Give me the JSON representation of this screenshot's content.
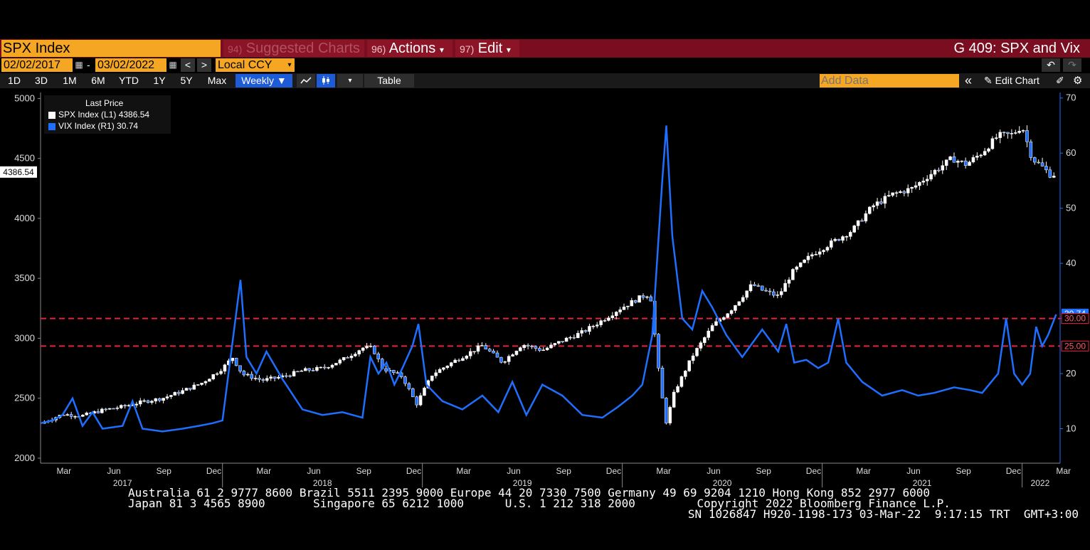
{
  "header": {
    "ticker": "SPX Index",
    "menus": [
      {
        "num": "94)",
        "label": "Suggested Charts",
        "dim": true
      },
      {
        "num": "96)",
        "label": "Actions",
        "caret": "▾"
      },
      {
        "num": "97)",
        "label": "Edit",
        "caret": "▾"
      }
    ],
    "chart_title": "G 409: SPX and Vix"
  },
  "range_bar": {
    "start_date": "02/02/2017",
    "end_date": "03/02/2022",
    "separator": "-",
    "currency": "Local CCY",
    "prev": "<",
    "next": ">"
  },
  "toolbar": {
    "periods": [
      "1D",
      "3D",
      "1M",
      "6M",
      "YTD",
      "1Y",
      "5Y",
      "Max"
    ],
    "frequency": "Weekly ▼",
    "table_label": "Table",
    "add_data_placeholder": "Add Data",
    "edit_chart_label": "Edit Chart",
    "collapse": "«"
  },
  "colors": {
    "spx": "#ffffff",
    "vix": "#1f6fff",
    "ref_line": "#e8223a",
    "accent": "#f5a623"
  },
  "chart_data": {
    "type": "line",
    "legend": {
      "title": "Last Price",
      "entries": [
        {
          "label": "SPX Index  (L1) 4386.54",
          "color": "#ffffff"
        },
        {
          "label": "VIX Index  (R1) 30.74",
          "color": "#1f6fff"
        }
      ],
      "placement": "top-left"
    },
    "left_axis": {
      "ticks": [
        2000,
        2500,
        3000,
        3500,
        4000,
        4500,
        5000
      ],
      "range": [
        1970,
        5050
      ],
      "last_label": "4386.54",
      "last_value": 4386.54
    },
    "right_axis": {
      "ticks": [
        10,
        20,
        30,
        40,
        50,
        60,
        70
      ],
      "range": [
        4,
        71
      ],
      "last_label": "30.74",
      "last_value": 30.74
    },
    "ref_lines": [
      {
        "value": 30,
        "label": "30.00"
      },
      {
        "value": 25,
        "label": "25.00"
      }
    ],
    "x_months": [
      "Mar",
      "Jun",
      "Sep",
      "Dec",
      "Mar",
      "Jun",
      "Sep",
      "Dec",
      "Mar",
      "Jun",
      "Sep",
      "Dec",
      "Mar",
      "Jun",
      "Sep",
      "Dec",
      "Mar",
      "Jun",
      "Sep",
      "Dec",
      "Mar"
    ],
    "x_years": [
      "2017",
      "2018",
      "2019",
      "2020",
      "2021",
      "2022"
    ],
    "series": [
      {
        "name": "SPX Index",
        "axis": "left",
        "style": "candle",
        "points": [
          [
            2017.09,
            2290
          ],
          [
            2017.2,
            2365
          ],
          [
            2017.3,
            2355
          ],
          [
            2017.4,
            2400
          ],
          [
            2017.5,
            2430
          ],
          [
            2017.6,
            2470
          ],
          [
            2017.7,
            2500
          ],
          [
            2017.8,
            2560
          ],
          [
            2017.9,
            2630
          ],
          [
            2018.0,
            2750
          ],
          [
            2018.05,
            2840
          ],
          [
            2018.1,
            2700
          ],
          [
            2018.2,
            2650
          ],
          [
            2018.3,
            2680
          ],
          [
            2018.4,
            2730
          ],
          [
            2018.5,
            2750
          ],
          [
            2018.6,
            2820
          ],
          [
            2018.7,
            2920
          ],
          [
            2018.75,
            2920
          ],
          [
            2018.8,
            2750
          ],
          [
            2018.9,
            2680
          ],
          [
            2018.97,
            2450
          ],
          [
            2019.05,
            2700
          ],
          [
            2019.15,
            2800
          ],
          [
            2019.3,
            2940
          ],
          [
            2019.4,
            2800
          ],
          [
            2019.5,
            2950
          ],
          [
            2019.6,
            2900
          ],
          [
            2019.7,
            2980
          ],
          [
            2019.8,
            3050
          ],
          [
            2019.9,
            3150
          ],
          [
            2019.98,
            3240
          ],
          [
            2020.1,
            3350
          ],
          [
            2020.14,
            3370
          ],
          [
            2020.19,
            2600
          ],
          [
            2020.22,
            2300
          ],
          [
            2020.26,
            2550
          ],
          [
            2020.35,
            2850
          ],
          [
            2020.45,
            3100
          ],
          [
            2020.55,
            3250
          ],
          [
            2020.65,
            3450
          ],
          [
            2020.7,
            3400
          ],
          [
            2020.78,
            3350
          ],
          [
            2020.85,
            3550
          ],
          [
            2020.95,
            3700
          ],
          [
            2021.05,
            3800
          ],
          [
            2021.15,
            3900
          ],
          [
            2021.25,
            4100
          ],
          [
            2021.35,
            4200
          ],
          [
            2021.45,
            4250
          ],
          [
            2021.55,
            4380
          ],
          [
            2021.65,
            4500
          ],
          [
            2021.72,
            4450
          ],
          [
            2021.8,
            4550
          ],
          [
            2021.88,
            4690
          ],
          [
            2021.95,
            4700
          ],
          [
            2022.0,
            4770
          ],
          [
            2022.05,
            4500
          ],
          [
            2022.1,
            4430
          ],
          [
            2022.15,
            4350
          ],
          [
            2022.17,
            4386.54
          ]
        ]
      },
      {
        "name": "VIX Index",
        "axis": "right",
        "style": "line",
        "points": [
          [
            2017.09,
            11.0
          ],
          [
            2017.15,
            11.5
          ],
          [
            2017.2,
            12.5
          ],
          [
            2017.25,
            15.5
          ],
          [
            2017.3,
            10.5
          ],
          [
            2017.35,
            13.0
          ],
          [
            2017.4,
            10.0
          ],
          [
            2017.5,
            10.5
          ],
          [
            2017.55,
            15.0
          ],
          [
            2017.6,
            10.0
          ],
          [
            2017.7,
            9.5
          ],
          [
            2017.8,
            10.0
          ],
          [
            2017.88,
            10.5
          ],
          [
            2017.95,
            11.0
          ],
          [
            2018.0,
            11.5
          ],
          [
            2018.09,
            37.0
          ],
          [
            2018.12,
            23.0
          ],
          [
            2018.17,
            20.0
          ],
          [
            2018.22,
            24.0
          ],
          [
            2018.3,
            19.0
          ],
          [
            2018.4,
            13.5
          ],
          [
            2018.5,
            12.5
          ],
          [
            2018.6,
            13.0
          ],
          [
            2018.7,
            12.0
          ],
          [
            2018.74,
            23.0
          ],
          [
            2018.78,
            20.0
          ],
          [
            2018.82,
            22.0
          ],
          [
            2018.86,
            18.0
          ],
          [
            2018.9,
            21.0
          ],
          [
            2018.95,
            25.0
          ],
          [
            2018.98,
            29.0
          ],
          [
            2019.02,
            18.0
          ],
          [
            2019.1,
            15.0
          ],
          [
            2019.2,
            13.5
          ],
          [
            2019.3,
            16.0
          ],
          [
            2019.38,
            13.0
          ],
          [
            2019.45,
            18.5
          ],
          [
            2019.52,
            12.5
          ],
          [
            2019.6,
            18.0
          ],
          [
            2019.7,
            16.0
          ],
          [
            2019.8,
            12.5
          ],
          [
            2019.9,
            12.0
          ],
          [
            2019.98,
            14.0
          ],
          [
            2020.05,
            16.0
          ],
          [
            2020.1,
            18.0
          ],
          [
            2020.15,
            27.0
          ],
          [
            2020.2,
            55.0
          ],
          [
            2020.22,
            65.0
          ],
          [
            2020.25,
            45.0
          ],
          [
            2020.3,
            30.0
          ],
          [
            2020.35,
            28.0
          ],
          [
            2020.4,
            35.0
          ],
          [
            2020.45,
            32.0
          ],
          [
            2020.52,
            27.0
          ],
          [
            2020.6,
            23.0
          ],
          [
            2020.7,
            28.0
          ],
          [
            2020.78,
            24.0
          ],
          [
            2020.82,
            29.0
          ],
          [
            2020.86,
            22.0
          ],
          [
            2020.92,
            22.5
          ],
          [
            2020.98,
            21.0
          ],
          [
            2021.03,
            22.0
          ],
          [
            2021.08,
            30.0
          ],
          [
            2021.12,
            22.0
          ],
          [
            2021.2,
            18.5
          ],
          [
            2021.3,
            16.0
          ],
          [
            2021.4,
            17.0
          ],
          [
            2021.48,
            16.0
          ],
          [
            2021.56,
            16.5
          ],
          [
            2021.66,
            17.5
          ],
          [
            2021.74,
            17.0
          ],
          [
            2021.8,
            16.5
          ],
          [
            2021.88,
            20.0
          ],
          [
            2021.92,
            30.0
          ],
          [
            2021.96,
            20.0
          ],
          [
            2022.0,
            18.0
          ],
          [
            2022.04,
            20.0
          ],
          [
            2022.07,
            28.5
          ],
          [
            2022.1,
            25.0
          ],
          [
            2022.13,
            27.0
          ],
          [
            2022.17,
            30.74
          ]
        ]
      }
    ]
  },
  "footer": {
    "line1": "Australia 61 2 9777 8600 Brazil 5511 2395 9000 Europe 44 20 7330 7500 Germany 49 69 9204 1210 Hong Kong 852 2977 6000",
    "line2": "Japan 81 3 4565 8900       Singapore 65 6212 1000      U.S. 1 212 318 2000         Copyright 2022 Bloomberg Finance L.P.",
    "line3": "SN 1026847 H920-1198-173 03-Mar-22  9:17:15 TRT  GMT+3:00"
  }
}
